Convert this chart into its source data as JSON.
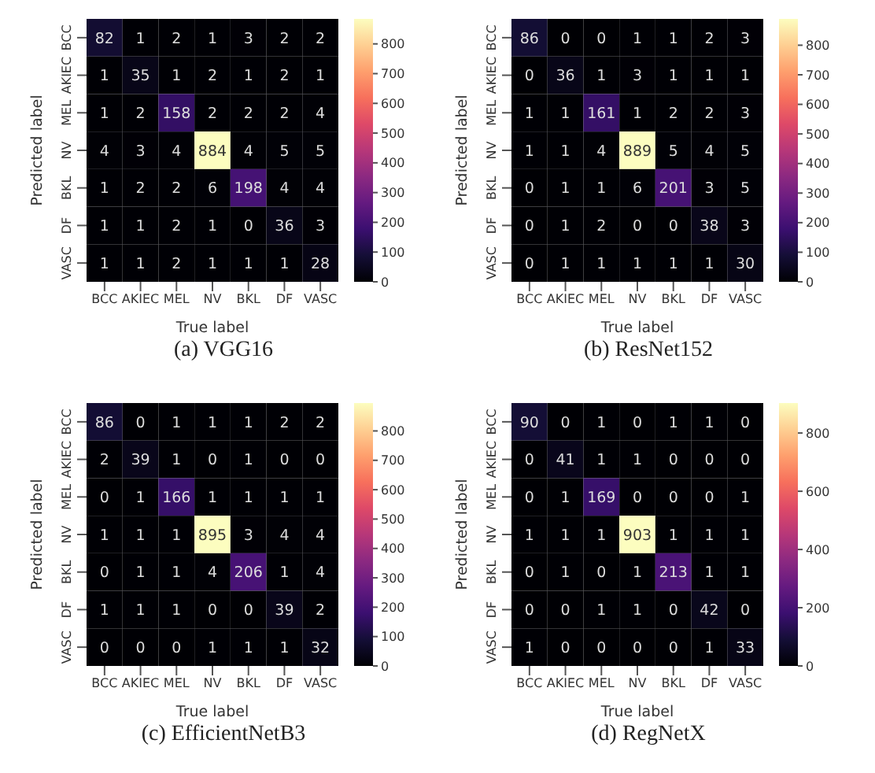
{
  "chart_data": [
    {
      "type": "heatmap",
      "title": "(a) VGG16",
      "xlabel": "True label",
      "ylabel": "Predicted label",
      "categories": [
        "BCC",
        "AKIEC",
        "MEL",
        "NV",
        "BKL",
        "DF",
        "VASC"
      ],
      "y_categories": [
        "BCC",
        "AKIEC",
        "MEL",
        "NV",
        "BKL",
        "DF",
        "VASC"
      ],
      "cells": [
        [
          82,
          1,
          2,
          1,
          3,
          2,
          2
        ],
        [
          1,
          35,
          1,
          2,
          1,
          2,
          1
        ],
        [
          1,
          2,
          158,
          2,
          2,
          2,
          4
        ],
        [
          4,
          3,
          4,
          884,
          4,
          5,
          5
        ],
        [
          1,
          2,
          2,
          6,
          198,
          4,
          4
        ],
        [
          1,
          1,
          2,
          1,
          0,
          36,
          3
        ],
        [
          1,
          1,
          2,
          1,
          1,
          1,
          28
        ]
      ],
      "clim": [
        0,
        884
      ],
      "cticks": [
        0,
        100,
        200,
        300,
        400,
        500,
        600,
        700,
        800
      ],
      "data_labels": true
    },
    {
      "type": "heatmap",
      "title": "(b) ResNet152",
      "xlabel": "True label",
      "ylabel": "Predicted label",
      "categories": [
        "BCC",
        "AKIEC",
        "MEL",
        "NV",
        "BKL",
        "DF",
        "VASC"
      ],
      "y_categories": [
        "BCC",
        "AKIEC",
        "MEL",
        "NV",
        "BKL",
        "DF",
        "VASC"
      ],
      "cells": [
        [
          86,
          0,
          0,
          1,
          1,
          2,
          3
        ],
        [
          0,
          36,
          1,
          3,
          1,
          1,
          1
        ],
        [
          1,
          1,
          161,
          1,
          2,
          2,
          3
        ],
        [
          1,
          1,
          4,
          889,
          5,
          4,
          5
        ],
        [
          0,
          1,
          1,
          6,
          201,
          3,
          5
        ],
        [
          0,
          1,
          2,
          0,
          0,
          38,
          3
        ],
        [
          0,
          1,
          1,
          1,
          1,
          1,
          30
        ]
      ],
      "clim": [
        0,
        889
      ],
      "cticks": [
        0,
        100,
        200,
        300,
        400,
        500,
        600,
        700,
        800
      ],
      "data_labels": true
    },
    {
      "type": "heatmap",
      "title": "(c) EfficientNetB3",
      "xlabel": "True label",
      "ylabel": "Predicted label",
      "categories": [
        "BCC",
        "AKIEC",
        "MEL",
        "NV",
        "BKL",
        "DF",
        "VASC"
      ],
      "y_categories": [
        "BCC",
        "AKIEC",
        "MEL",
        "NV",
        "BKL",
        "DF",
        "VASC"
      ],
      "cells": [
        [
          86,
          0,
          1,
          1,
          1,
          2,
          2
        ],
        [
          2,
          39,
          1,
          0,
          1,
          0,
          0
        ],
        [
          0,
          1,
          166,
          1,
          1,
          1,
          1
        ],
        [
          1,
          1,
          1,
          895,
          3,
          4,
          4
        ],
        [
          0,
          1,
          1,
          4,
          206,
          1,
          4
        ],
        [
          1,
          1,
          1,
          0,
          0,
          39,
          2
        ],
        [
          0,
          0,
          0,
          1,
          1,
          1,
          32
        ]
      ],
      "clim": [
        0,
        895
      ],
      "cticks": [
        0,
        100,
        200,
        300,
        400,
        500,
        600,
        700,
        800
      ],
      "data_labels": true
    },
    {
      "type": "heatmap",
      "title": "(d) RegNetX",
      "xlabel": "True label",
      "ylabel": "Predicted label",
      "categories": [
        "BCC",
        "AKIEC",
        "MEL",
        "NV",
        "BKL",
        "DF",
        "VASC"
      ],
      "y_categories": [
        "BCC",
        "AKIEC",
        "MEL",
        "NV",
        "BKL",
        "DF",
        "VASC"
      ],
      "cells": [
        [
          90,
          0,
          1,
          0,
          1,
          1,
          0
        ],
        [
          0,
          41,
          1,
          1,
          0,
          0,
          0
        ],
        [
          0,
          1,
          169,
          0,
          0,
          0,
          1
        ],
        [
          1,
          1,
          1,
          903,
          1,
          1,
          1
        ],
        [
          0,
          1,
          0,
          1,
          213,
          1,
          1
        ],
        [
          0,
          0,
          1,
          1,
          0,
          42,
          0
        ],
        [
          1,
          0,
          0,
          0,
          0,
          1,
          33
        ]
      ],
      "clim": [
        0,
        903
      ],
      "cticks": [
        0,
        200,
        400,
        600,
        800
      ],
      "data_labels": true
    }
  ]
}
